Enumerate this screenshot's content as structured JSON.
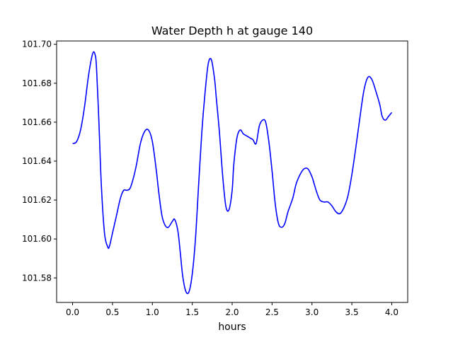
{
  "chart_data": {
    "type": "line",
    "title": "Water Depth h at gauge 140",
    "xlabel": "hours",
    "ylabel": "",
    "xlim": [
      -0.2,
      4.2
    ],
    "ylim": [
      101.5674,
      101.7017
    ],
    "xticks": [
      "0.0",
      "0.5",
      "1.0",
      "1.5",
      "2.0",
      "2.5",
      "3.0",
      "3.5",
      "4.0"
    ],
    "yticks": [
      "101.58",
      "101.60",
      "101.62",
      "101.64",
      "101.66",
      "101.68",
      "101.70"
    ],
    "grid": false,
    "series": [
      {
        "color": "#0000ff",
        "x": [
          0.0,
          0.05,
          0.1,
          0.15,
          0.2,
          0.25,
          0.28,
          0.3,
          0.33,
          0.36,
          0.4,
          0.44,
          0.46,
          0.5,
          0.55,
          0.6,
          0.64,
          0.68,
          0.72,
          0.76,
          0.8,
          0.85,
          0.9,
          0.95,
          1.0,
          1.05,
          1.08,
          1.12,
          1.16,
          1.2,
          1.25,
          1.28,
          1.32,
          1.35,
          1.38,
          1.42,
          1.46,
          1.5,
          1.54,
          1.58,
          1.62,
          1.66,
          1.7,
          1.74,
          1.78,
          1.8,
          1.84,
          1.88,
          1.92,
          1.96,
          2.0,
          2.02,
          2.06,
          2.1,
          2.14,
          2.18,
          2.22,
          2.26,
          2.3,
          2.34,
          2.38,
          2.42,
          2.46,
          2.5,
          2.54,
          2.58,
          2.62,
          2.66,
          2.7,
          2.76,
          2.8,
          2.85,
          2.9,
          2.95,
          3.0,
          3.03,
          3.06,
          3.1,
          3.15,
          3.2,
          3.25,
          3.3,
          3.35,
          3.4,
          3.45,
          3.5,
          3.55,
          3.6,
          3.65,
          3.7,
          3.75,
          3.8,
          3.85,
          3.88,
          3.92,
          3.96,
          4.0
        ],
        "y": [
          101.649,
          101.65,
          101.656,
          101.668,
          101.684,
          101.695,
          101.695,
          101.688,
          101.66,
          101.628,
          101.603,
          101.596,
          101.596,
          101.603,
          101.612,
          101.621,
          101.625,
          101.625,
          101.626,
          101.631,
          101.638,
          101.649,
          101.655,
          101.656,
          101.65,
          101.635,
          101.624,
          101.612,
          101.607,
          101.606,
          101.609,
          101.61,
          101.604,
          101.593,
          101.581,
          101.573,
          101.573,
          101.582,
          101.6,
          101.628,
          101.655,
          101.675,
          101.69,
          101.692,
          101.682,
          101.673,
          101.655,
          101.633,
          101.617,
          101.615,
          101.625,
          101.638,
          101.652,
          101.656,
          101.654,
          101.653,
          101.652,
          101.651,
          101.649,
          101.658,
          101.661,
          101.66,
          101.65,
          101.635,
          101.618,
          101.608,
          101.606,
          101.608,
          101.614,
          101.621,
          101.628,
          101.633,
          101.636,
          101.636,
          101.632,
          101.628,
          101.624,
          101.62,
          101.619,
          101.619,
          101.617,
          101.614,
          101.613,
          101.616,
          101.622,
          101.633,
          101.647,
          101.662,
          101.676,
          101.683,
          101.682,
          101.676,
          101.669,
          101.663,
          101.661,
          101.663,
          101.665
        ]
      }
    ]
  }
}
